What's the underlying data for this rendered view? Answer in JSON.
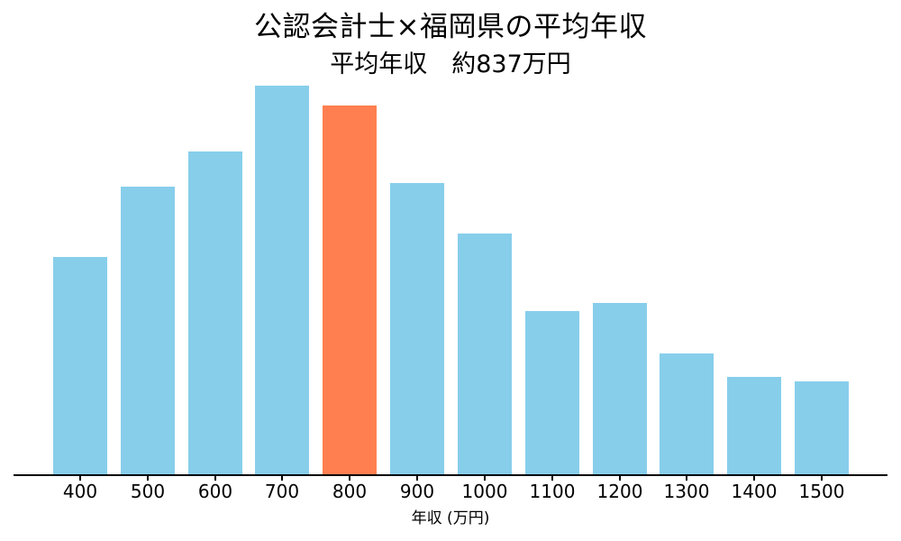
{
  "chart_data": {
    "type": "bar",
    "title": "公認会計士×福岡県の平均年収",
    "subtitle": "平均年収　約837万円",
    "xlabel": "年収 (万円)",
    "ylabel": "",
    "categories": [
      "400",
      "500",
      "600",
      "700",
      "800",
      "900",
      "1000",
      "1100",
      "1200",
      "1300",
      "1400",
      "1500"
    ],
    "values": [
      56,
      74,
      83,
      100,
      95,
      75,
      62,
      42,
      44,
      31,
      25,
      24
    ],
    "values_note": "relative bar heights in percent of tallest bar (700); no y-axis shown",
    "highlight_category": "800",
    "highlight_index": 4,
    "average_value_label": "約837万円",
    "colors": {
      "bar": "#87CEEB",
      "highlight": "#FF7F50",
      "axis": "#000000",
      "text": "#000000",
      "background": "#ffffff"
    },
    "layout_hints": {
      "grid": false,
      "legend": false,
      "y_axis_visible": false,
      "x_tick_marks": true
    }
  }
}
